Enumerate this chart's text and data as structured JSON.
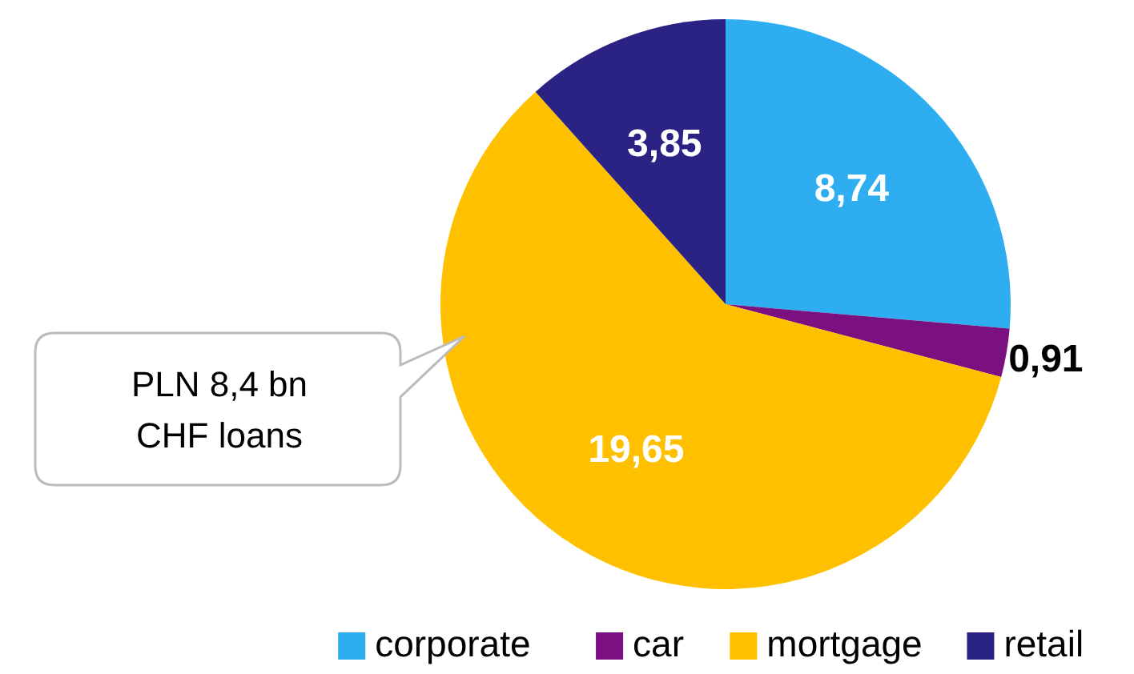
{
  "chart_data": {
    "type": "pie",
    "categories": [
      "corporate",
      "car",
      "mortgage",
      "retail"
    ],
    "values": [
      8.74,
      0.91,
      19.65,
      3.85
    ],
    "colors": [
      "#2eaef0",
      "#7b1080",
      "#ffc000",
      "#2a2384"
    ],
    "value_labels": [
      "8,74",
      "0,91",
      "19,65",
      "3,85"
    ],
    "annotations": [
      "PLN 8,4 bn\nCHF loans"
    ],
    "legend": "bottom"
  }
}
